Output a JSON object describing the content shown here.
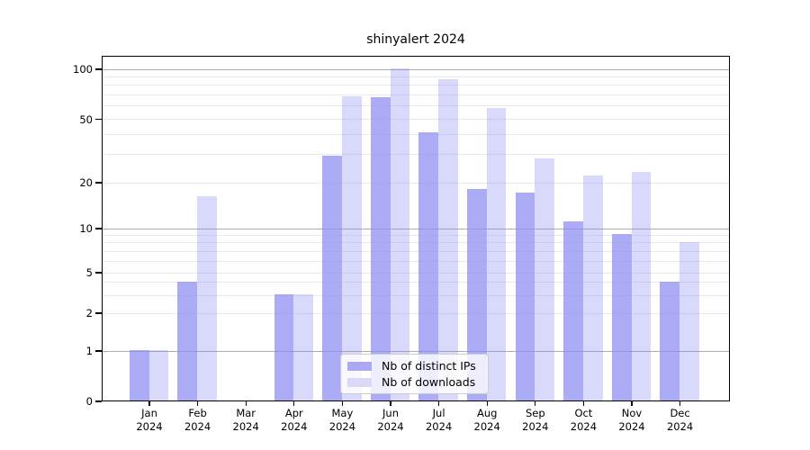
{
  "title": "shinyalert 2024",
  "chart_data": {
    "type": "bar",
    "title": "shinyalert 2024",
    "categories": [
      "Jan",
      "Feb",
      "Mar",
      "Apr",
      "May",
      "Jun",
      "Jul",
      "Aug",
      "Sep",
      "Oct",
      "Nov",
      "Dec"
    ],
    "year": "2024",
    "series": [
      {
        "name": "Nb of distinct IPs",
        "values": [
          1,
          4,
          0,
          3,
          29,
          67,
          41,
          18,
          17,
          11,
          9,
          4
        ],
        "fill": "rgba(140,140,242,0.72)",
        "swatch": "#a9a9f4"
      },
      {
        "name": "Nb of downloads",
        "values": [
          1,
          16,
          0,
          3,
          68,
          100,
          86,
          58,
          28,
          22,
          23,
          8
        ],
        "fill": "rgba(140,140,242,0.33)",
        "swatch": "#dadaf8"
      }
    ],
    "y_ticks": [
      0,
      1,
      2,
      5,
      10,
      20,
      50,
      100
    ],
    "y_major_gridlines": [
      1,
      10,
      100
    ],
    "y_minor_gridlines": [
      2,
      3,
      4,
      5,
      6,
      7,
      8,
      9,
      20,
      30,
      40,
      50,
      60,
      70,
      80,
      90
    ],
    "y_scale": "log-like",
    "ylim": [
      0,
      100
    ],
    "grid": true,
    "legend_position": "bottom-center",
    "colors": {
      "bar_base": "#8c8cf2",
      "grid_major": "#ababab",
      "grid_minor": "#e9e9ef",
      "spine": "#000000"
    }
  }
}
